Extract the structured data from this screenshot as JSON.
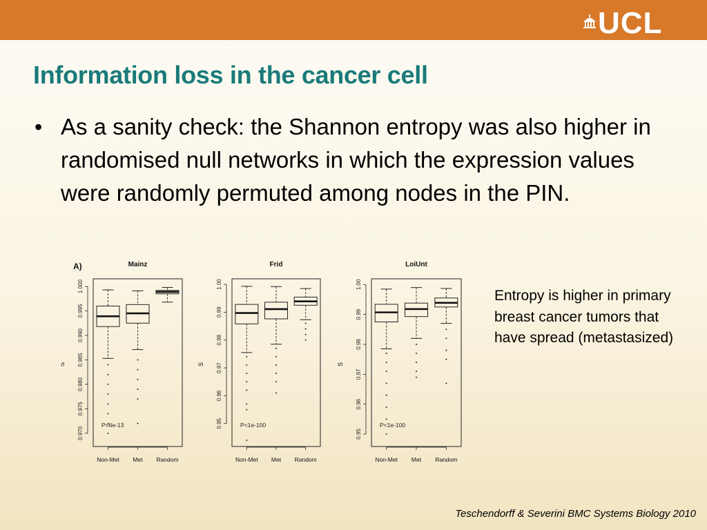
{
  "header": {
    "color": "#d8792a",
    "logo_text": "UCL",
    "logo_icon": "portico-icon"
  },
  "slide": {
    "title": "Information loss in the cancer cell",
    "bullet": "As a sanity check: the Shannon entropy was also higher in randomised null networks in which the expression values were randomly permuted among nodes in the PIN.",
    "side_note": "Entropy is higher in primary breast cancer tumors that have spread (metastasized)",
    "citation": "Teschendorff & Severini BMC Systems Biology 2010"
  },
  "figure": {
    "panel_label": "A)"
  },
  "chart_data": [
    {
      "type": "boxplot",
      "title": "Mainz",
      "ylabel": "S",
      "categories": [
        "Non-Met",
        "Met",
        "Random"
      ],
      "ylim": [
        0.968,
        1.001
      ],
      "yticks": [
        "0.970",
        "0.975",
        "0.980",
        "0.985",
        "0.990",
        "0.995",
        "1.000"
      ],
      "annotation": "P=6e-13",
      "boxes": [
        {
          "low": 0.9853,
          "q1": 0.9918,
          "median": 0.9939,
          "q3": 0.996,
          "high": 0.9993,
          "outliers": [
            0.984,
            0.982,
            0.98,
            0.978,
            0.976,
            0.974,
            0.972,
            0.97
          ]
        },
        {
          "low": 0.9871,
          "q1": 0.9925,
          "median": 0.9945,
          "q3": 0.9963,
          "high": 0.9991,
          "outliers": [
            0.985,
            0.983,
            0.981,
            0.979,
            0.977,
            0.972
          ]
        },
        {
          "low": 0.9968,
          "q1": 0.9985,
          "median": 0.9989,
          "q3": 0.9992,
          "high": 0.9998,
          "outliers": []
        }
      ]
    },
    {
      "type": "boxplot",
      "title": "Frid",
      "ylabel": "S",
      "categories": [
        "Non-Met",
        "Met",
        "Random"
      ],
      "ylim": [
        0.943,
        1.001
      ],
      "yticks": [
        "0.95",
        "0.96",
        "0.97",
        "0.98",
        "0.99",
        "1.00"
      ],
      "annotation": "P<1e-100",
      "boxes": [
        {
          "low": 0.9755,
          "q1": 0.9858,
          "median": 0.9897,
          "q3": 0.9928,
          "high": 0.9993,
          "outliers": [
            0.974,
            0.971,
            0.968,
            0.965,
            0.962,
            0.957,
            0.955,
            0.944
          ]
        },
        {
          "low": 0.9785,
          "q1": 0.9876,
          "median": 0.9911,
          "q3": 0.9936,
          "high": 0.9992,
          "outliers": [
            0.977,
            0.974,
            0.971,
            0.968,
            0.965,
            0.961
          ]
        },
        {
          "low": 0.9873,
          "q1": 0.9925,
          "median": 0.9939,
          "q3": 0.9954,
          "high": 0.9985,
          "outliers": [
            0.986,
            0.984,
            0.982,
            0.98
          ]
        }
      ]
    },
    {
      "type": "boxplot",
      "title": "LoiUnt",
      "ylabel": "S",
      "categories": [
        "Non-Met",
        "Met",
        "Random"
      ],
      "ylim": [
        0.947,
        1.001
      ],
      "yticks": [
        "0.95",
        "0.96",
        "0.97",
        "0.98",
        "0.99",
        "1.00"
      ],
      "annotation": "P<1e-100",
      "boxes": [
        {
          "low": 0.9785,
          "q1": 0.9875,
          "median": 0.9907,
          "q3": 0.9934,
          "high": 0.9985,
          "outliers": [
            0.977,
            0.974,
            0.971,
            0.967,
            0.963,
            0.959,
            0.955,
            0.95
          ]
        },
        {
          "low": 0.982,
          "q1": 0.9893,
          "median": 0.9918,
          "q3": 0.9938,
          "high": 0.999,
          "outliers": [
            0.98,
            0.977,
            0.974,
            0.971,
            0.969
          ]
        },
        {
          "low": 0.987,
          "q1": 0.9925,
          "median": 0.9939,
          "q3": 0.9955,
          "high": 0.9987,
          "outliers": [
            0.985,
            0.982,
            0.978,
            0.975,
            0.967
          ]
        }
      ]
    }
  ]
}
